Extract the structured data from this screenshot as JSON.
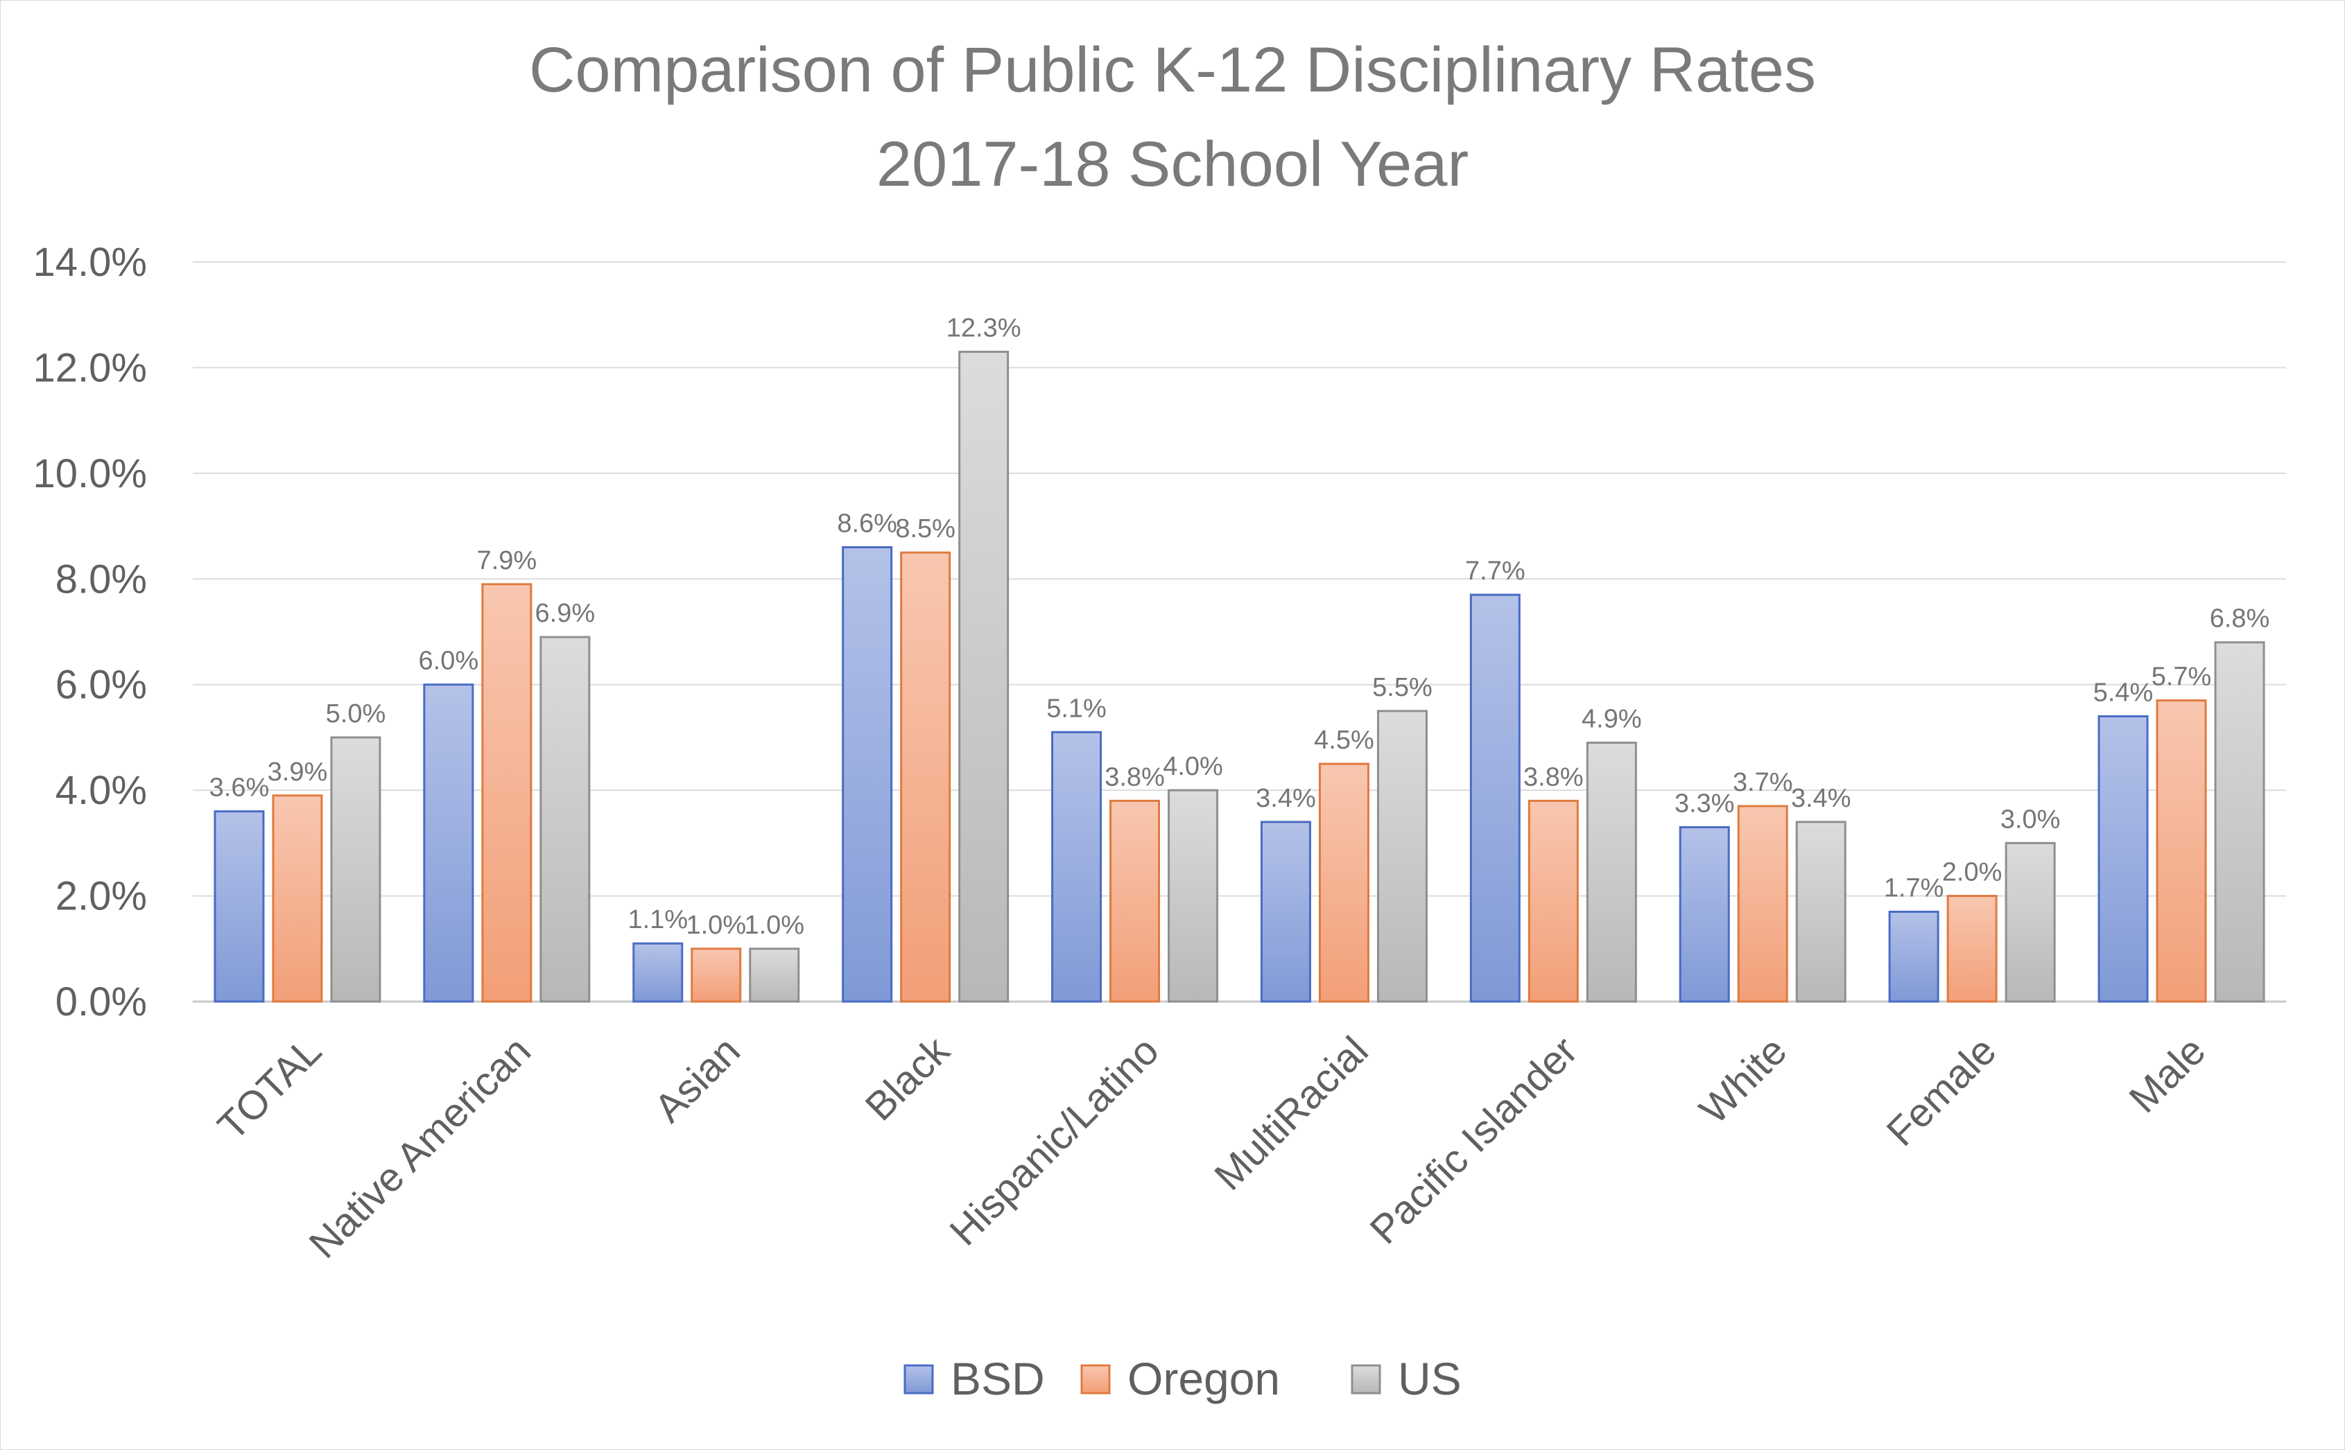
{
  "chart_data": {
    "type": "bar",
    "title": "Comparison of Public K-12 Disciplinary Rates",
    "subtitle": "2017-18 School Year",
    "xlabel": "",
    "ylabel": "",
    "ylim": [
      0,
      14
    ],
    "y_ticks": [
      "0.0%",
      "2.0%",
      "4.0%",
      "6.0%",
      "8.0%",
      "10.0%",
      "12.0%",
      "14.0%"
    ],
    "grid": true,
    "legend_position": "bottom",
    "categories": [
      "TOTAL",
      "Native American",
      "Asian",
      "Black",
      "Hispanic/Latino",
      "MultiRacial",
      "Pacific Islander",
      "White",
      "Female",
      "Male"
    ],
    "series": [
      {
        "name": "BSD",
        "color": "#8fa3d8",
        "values": [
          3.6,
          6.0,
          1.1,
          8.6,
          5.1,
          3.4,
          7.7,
          3.3,
          1.7,
          5.4
        ],
        "labels": [
          "3.6%",
          "6.0%",
          "1.1%",
          "8.6%",
          "5.1%",
          "3.4%",
          "7.7%",
          "3.3%",
          "1.7%",
          "5.4%"
        ]
      },
      {
        "name": "Oregon",
        "color": "#f4a985",
        "values": [
          3.9,
          7.9,
          1.0,
          8.5,
          3.8,
          4.5,
          3.8,
          3.7,
          2.0,
          5.7
        ],
        "labels": [
          "3.9%",
          "7.9%",
          "1.0%",
          "8.5%",
          "3.8%",
          "4.5%",
          "3.8%",
          "3.7%",
          "2.0%",
          "5.7%"
        ]
      },
      {
        "name": "US",
        "color": "#c4c4c4",
        "values": [
          5.0,
          6.9,
          1.0,
          12.3,
          4.0,
          5.5,
          4.9,
          3.4,
          3.0,
          6.8
        ],
        "labels": [
          "5.0%",
          "6.9%",
          "1.0%",
          "12.3%",
          "4.0%",
          "5.5%",
          "4.9%",
          "3.4%",
          "3.0%",
          "6.8%"
        ]
      }
    ]
  }
}
